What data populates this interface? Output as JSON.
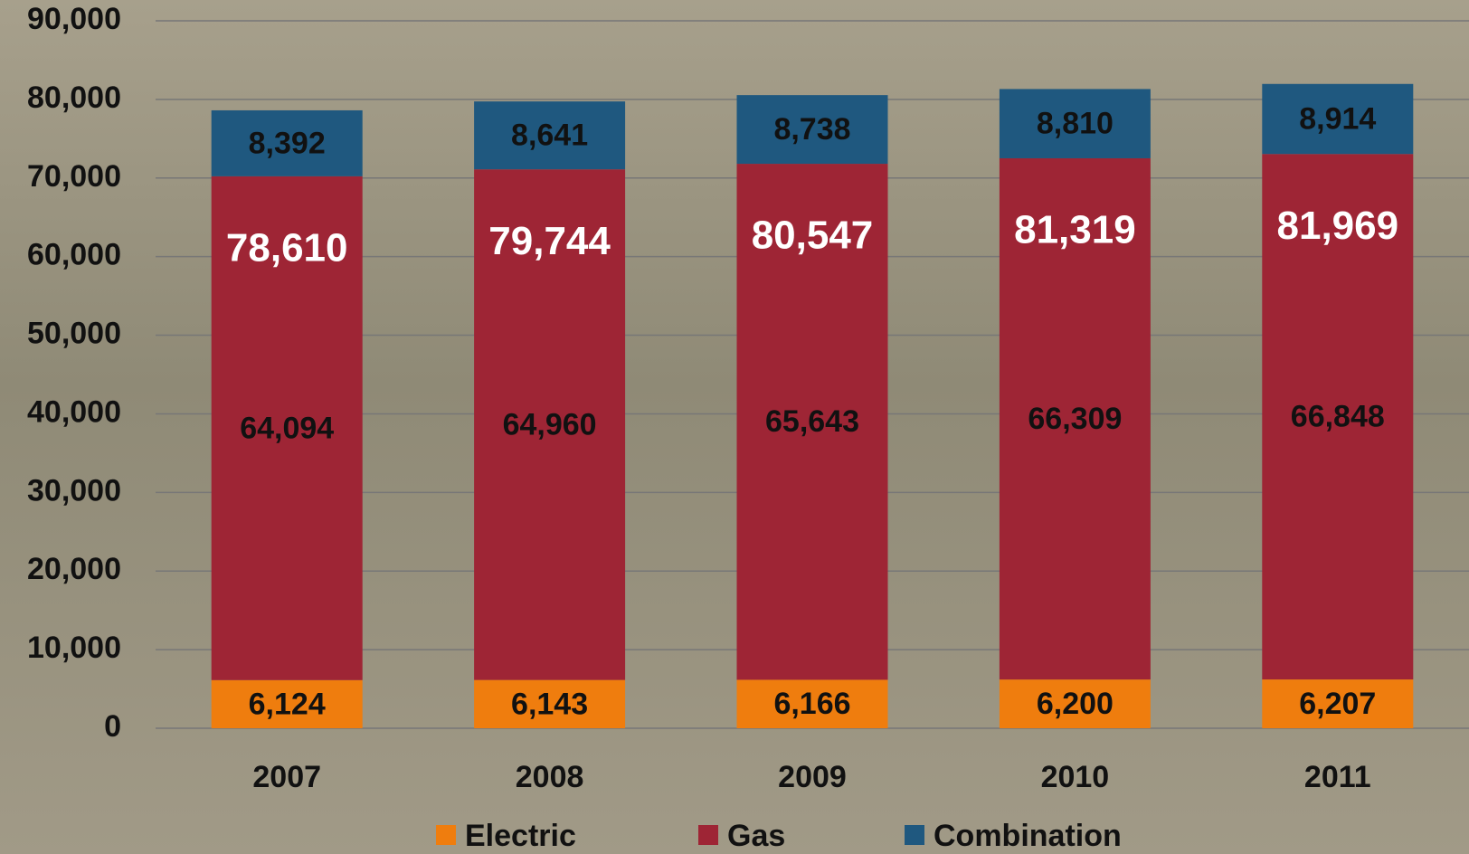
{
  "chart_data": {
    "type": "stacked-bar",
    "categories": [
      "2007",
      "2008",
      "2009",
      "2010",
      "2011"
    ],
    "series": [
      {
        "name": "Electric",
        "color": "#ef7d0e",
        "values": [
          6124,
          6143,
          6166,
          6200,
          6207
        ],
        "value_labels": [
          "6,124",
          "6,143",
          "6,166",
          "6,200",
          "6,207"
        ]
      },
      {
        "name": "Gas",
        "color": "#9e2535",
        "values": [
          64094,
          64960,
          65643,
          66309,
          66848
        ],
        "value_labels": [
          "64,094",
          "64,960",
          "65,643",
          "66,309",
          "66,848"
        ]
      },
      {
        "name": "Combination",
        "color": "#1f587f",
        "values": [
          8392,
          8641,
          8738,
          8810,
          8914
        ],
        "value_labels": [
          "8,392",
          "8,641",
          "8,738",
          "8,810",
          "8,914"
        ]
      }
    ],
    "totals": [
      78610,
      79744,
      80547,
      81319,
      81969
    ],
    "total_labels": [
      "78,610",
      "79,744",
      "80,547",
      "81,319",
      "81,969"
    ],
    "ylim": [
      0,
      90000
    ],
    "yticks": [
      0,
      {
        "value": 10000,
        "label": "10,000"
      },
      {
        "value": 20000,
        "label": "20,000"
      },
      {
        "value": 30000,
        "label": "30,000"
      },
      {
        "value": 40000,
        "label": "40,000"
      },
      {
        "value": 50000,
        "label": "50,000"
      },
      {
        "value": 60000,
        "label": "60,000"
      },
      {
        "value": 70000,
        "label": "70,000"
      },
      {
        "value": 80000,
        "label": "80,000"
      },
      {
        "value": 90000,
        "label": "90,000"
      }
    ],
    "grid": true,
    "legend": "bottom"
  }
}
